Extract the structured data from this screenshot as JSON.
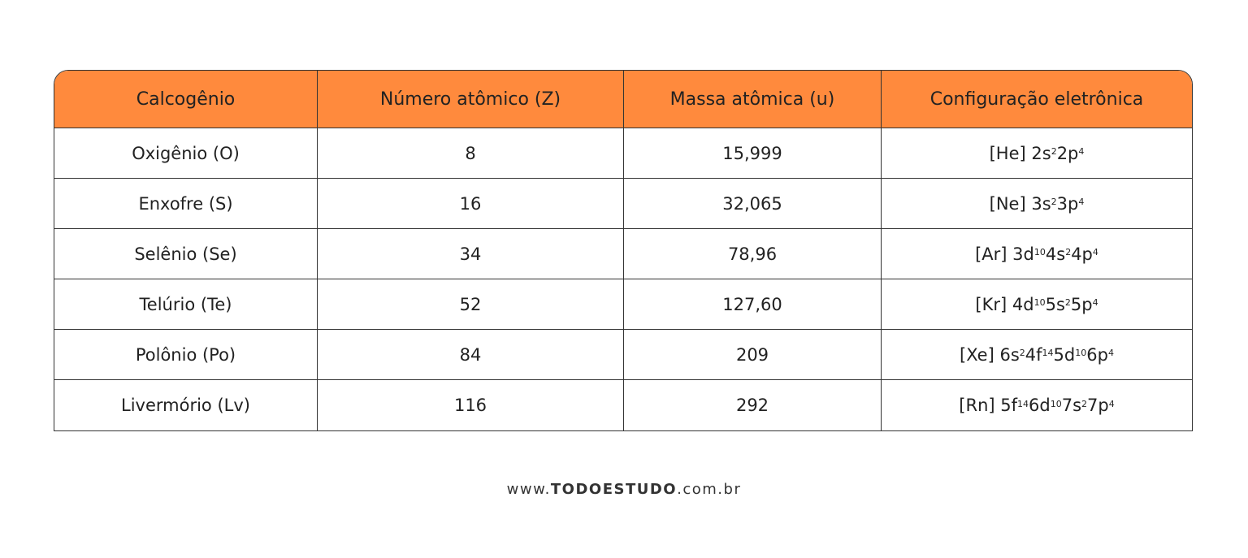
{
  "table": {
    "header": [
      "Calcogênio",
      "Número atômico (Z)",
      "Massa atômica (u)",
      "Configuração eletrônica"
    ],
    "rows": [
      [
        "Oxigênio (O)",
        "8",
        "15,999",
        [
          [
            "[He] 2s",
            "2"
          ],
          [
            "2p",
            "4"
          ]
        ]
      ],
      [
        "Enxofre (S)",
        "16",
        "32,065",
        [
          [
            "[Ne] 3s",
            "2"
          ],
          [
            "3p",
            "4"
          ]
        ]
      ],
      [
        "Selênio (Se)",
        "34",
        "78,96",
        [
          [
            "[Ar] 3d",
            "10"
          ],
          [
            "4s",
            "2"
          ],
          [
            "4p",
            "4"
          ]
        ]
      ],
      [
        "Telúrio (Te)",
        "52",
        "127,60",
        [
          [
            "[Kr] 4d",
            "10"
          ],
          [
            "5s",
            "2"
          ],
          [
            "5p",
            "4"
          ]
        ]
      ],
      [
        "Polônio (Po)",
        "84",
        "209",
        [
          [
            "[Xe] 6s",
            "2"
          ],
          [
            "4f",
            "14"
          ],
          [
            "5d",
            "10"
          ],
          [
            "6p",
            "4"
          ]
        ]
      ],
      [
        "Livermório (Lv)",
        "116",
        "292",
        [
          [
            "[Rn] 5f",
            "14"
          ],
          [
            "6d",
            "10"
          ],
          [
            "7s",
            "2"
          ],
          [
            "7p",
            "4"
          ]
        ]
      ]
    ]
  },
  "footer": {
    "prefix": "www.",
    "brand": "TODOESTUDO",
    "suffix": ".com.br"
  }
}
